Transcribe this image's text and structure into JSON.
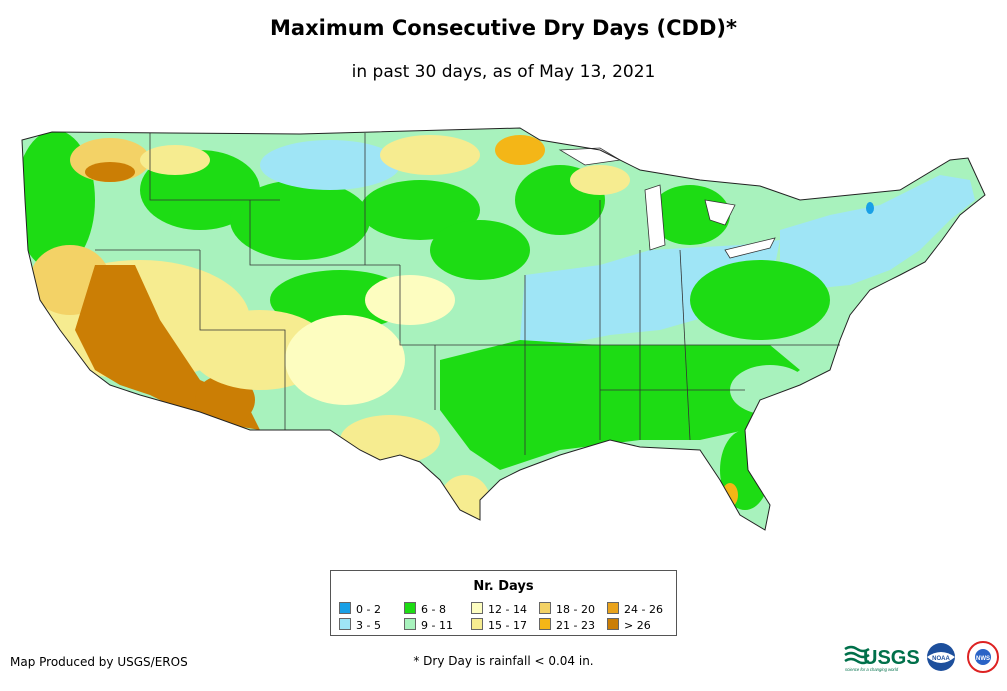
{
  "title": "Maximum Consecutive Dry Days (CDD)*",
  "subtitle": "in past 30 days, as of May 13, 2021",
  "legend": {
    "title": "Nr. Days",
    "items": [
      {
        "label": "0 - 2",
        "color": "#19a0e6"
      },
      {
        "label": "3 - 5",
        "color": "#9fe5f6"
      },
      {
        "label": "6 - 8",
        "color": "#1ddc14"
      },
      {
        "label": "9 - 11",
        "color": "#a8f2bd"
      },
      {
        "label": "12 - 14",
        "color": "#fdfdc0"
      },
      {
        "label": "15 - 17",
        "color": "#f6ec90"
      },
      {
        "label": "18 - 20",
        "color": "#f3d266"
      },
      {
        "label": "21 - 23",
        "color": "#f4b617"
      },
      {
        "label": "24 - 26",
        "color": "#e9a31c"
      },
      {
        "label": "> 26",
        "color": "#cb7e05"
      }
    ]
  },
  "credit": "Map Produced by USGS/EROS",
  "footnote": "* Dry Day is rainfall < 0.04 in.",
  "logos": {
    "usgs_text": "USGS",
    "usgs_tagline": "science for a changing world",
    "noaa_text": "NOAA",
    "nws_text": "NWS"
  }
}
